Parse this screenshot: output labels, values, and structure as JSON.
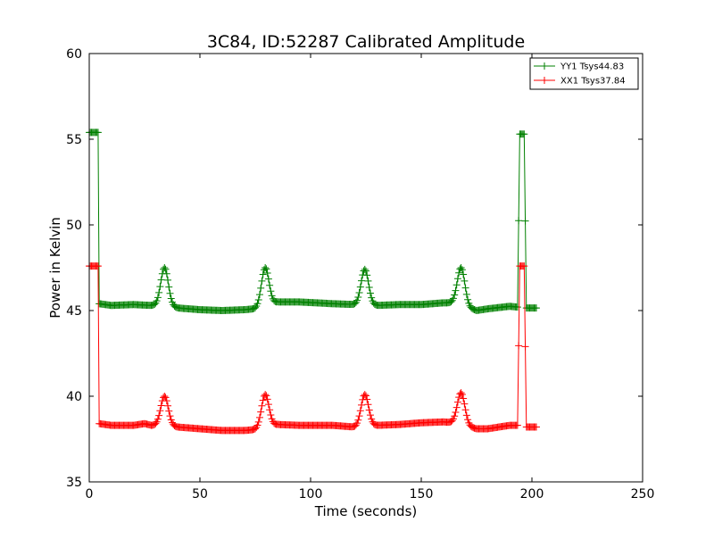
{
  "chart_data": {
    "type": "line",
    "title": "3C84, ID:52287 Calibrated Amplitude",
    "xlabel": "Time (seconds)",
    "ylabel": "Power in Kelvin",
    "xlim": [
      0,
      250
    ],
    "ylim": [
      35,
      60
    ],
    "xticks": [
      "0",
      "50",
      "100",
      "150",
      "200",
      "250"
    ],
    "yticks": [
      "35",
      "40",
      "45",
      "50",
      "55",
      "60"
    ],
    "grid": false,
    "legend_position": "top-right",
    "marker": "+",
    "series": [
      {
        "name": "YY1 Tsys44.83",
        "color": "#008000",
        "baseline_points": [
          [
            4.5,
            45.4
          ],
          [
            10,
            45.3
          ],
          [
            20,
            45.35
          ],
          [
            28,
            45.3
          ],
          [
            35,
            45.3
          ],
          [
            40,
            45.15
          ],
          [
            50,
            45.05
          ],
          [
            60,
            45.0
          ],
          [
            70,
            45.05
          ],
          [
            75,
            45.1
          ],
          [
            85,
            45.5
          ],
          [
            95,
            45.5
          ],
          [
            110,
            45.4
          ],
          [
            120,
            45.35
          ],
          [
            130,
            45.3
          ],
          [
            140,
            45.35
          ],
          [
            150,
            45.35
          ],
          [
            160,
            45.45
          ],
          [
            165,
            45.45
          ],
          [
            175,
            45.0
          ],
          [
            180,
            45.1
          ],
          [
            190,
            45.25
          ],
          [
            193.5,
            45.2
          ]
        ],
        "peaks": [
          {
            "t": 34,
            "value": 47.5
          },
          {
            "t": 79.5,
            "value": 47.5
          },
          {
            "t": 124.5,
            "value": 47.4
          },
          {
            "t": 168,
            "value": 47.5
          }
        ],
        "segments": [
          {
            "t_start": 0,
            "t_end": 4.0,
            "value": 55.4
          },
          {
            "t_start": 194.5,
            "t_end": 196.5,
            "value": 55.3
          },
          {
            "t_start": 197.5,
            "t_end": 202,
            "value": 45.15
          }
        ]
      },
      {
        "name": "XX1 Tsys37.84",
        "color": "#ff0000",
        "baseline_points": [
          [
            4.5,
            38.4
          ],
          [
            10,
            38.3
          ],
          [
            20,
            38.3
          ],
          [
            25,
            38.4
          ],
          [
            28,
            38.3
          ],
          [
            35,
            38.3
          ],
          [
            40,
            38.2
          ],
          [
            50,
            38.1
          ],
          [
            60,
            38.0
          ],
          [
            70,
            38.0
          ],
          [
            75,
            38.05
          ],
          [
            85,
            38.35
          ],
          [
            95,
            38.3
          ],
          [
            110,
            38.3
          ],
          [
            120,
            38.2
          ],
          [
            130,
            38.3
          ],
          [
            140,
            38.35
          ],
          [
            150,
            38.45
          ],
          [
            160,
            38.5
          ],
          [
            165,
            38.45
          ],
          [
            175,
            38.1
          ],
          [
            180,
            38.1
          ],
          [
            190,
            38.3
          ],
          [
            193.5,
            38.3
          ]
        ],
        "peaks": [
          {
            "t": 34,
            "value": 40.0
          },
          {
            "t": 79.5,
            "value": 40.1
          },
          {
            "t": 124.5,
            "value": 40.1
          },
          {
            "t": 168,
            "value": 40.2
          }
        ],
        "segments": [
          {
            "t_start": 0,
            "t_end": 4.0,
            "value": 47.6
          },
          {
            "t_start": 194.5,
            "t_end": 196.5,
            "value": 47.6
          },
          {
            "t_start": 197.5,
            "t_end": 202,
            "value": 38.2
          }
        ]
      }
    ]
  }
}
